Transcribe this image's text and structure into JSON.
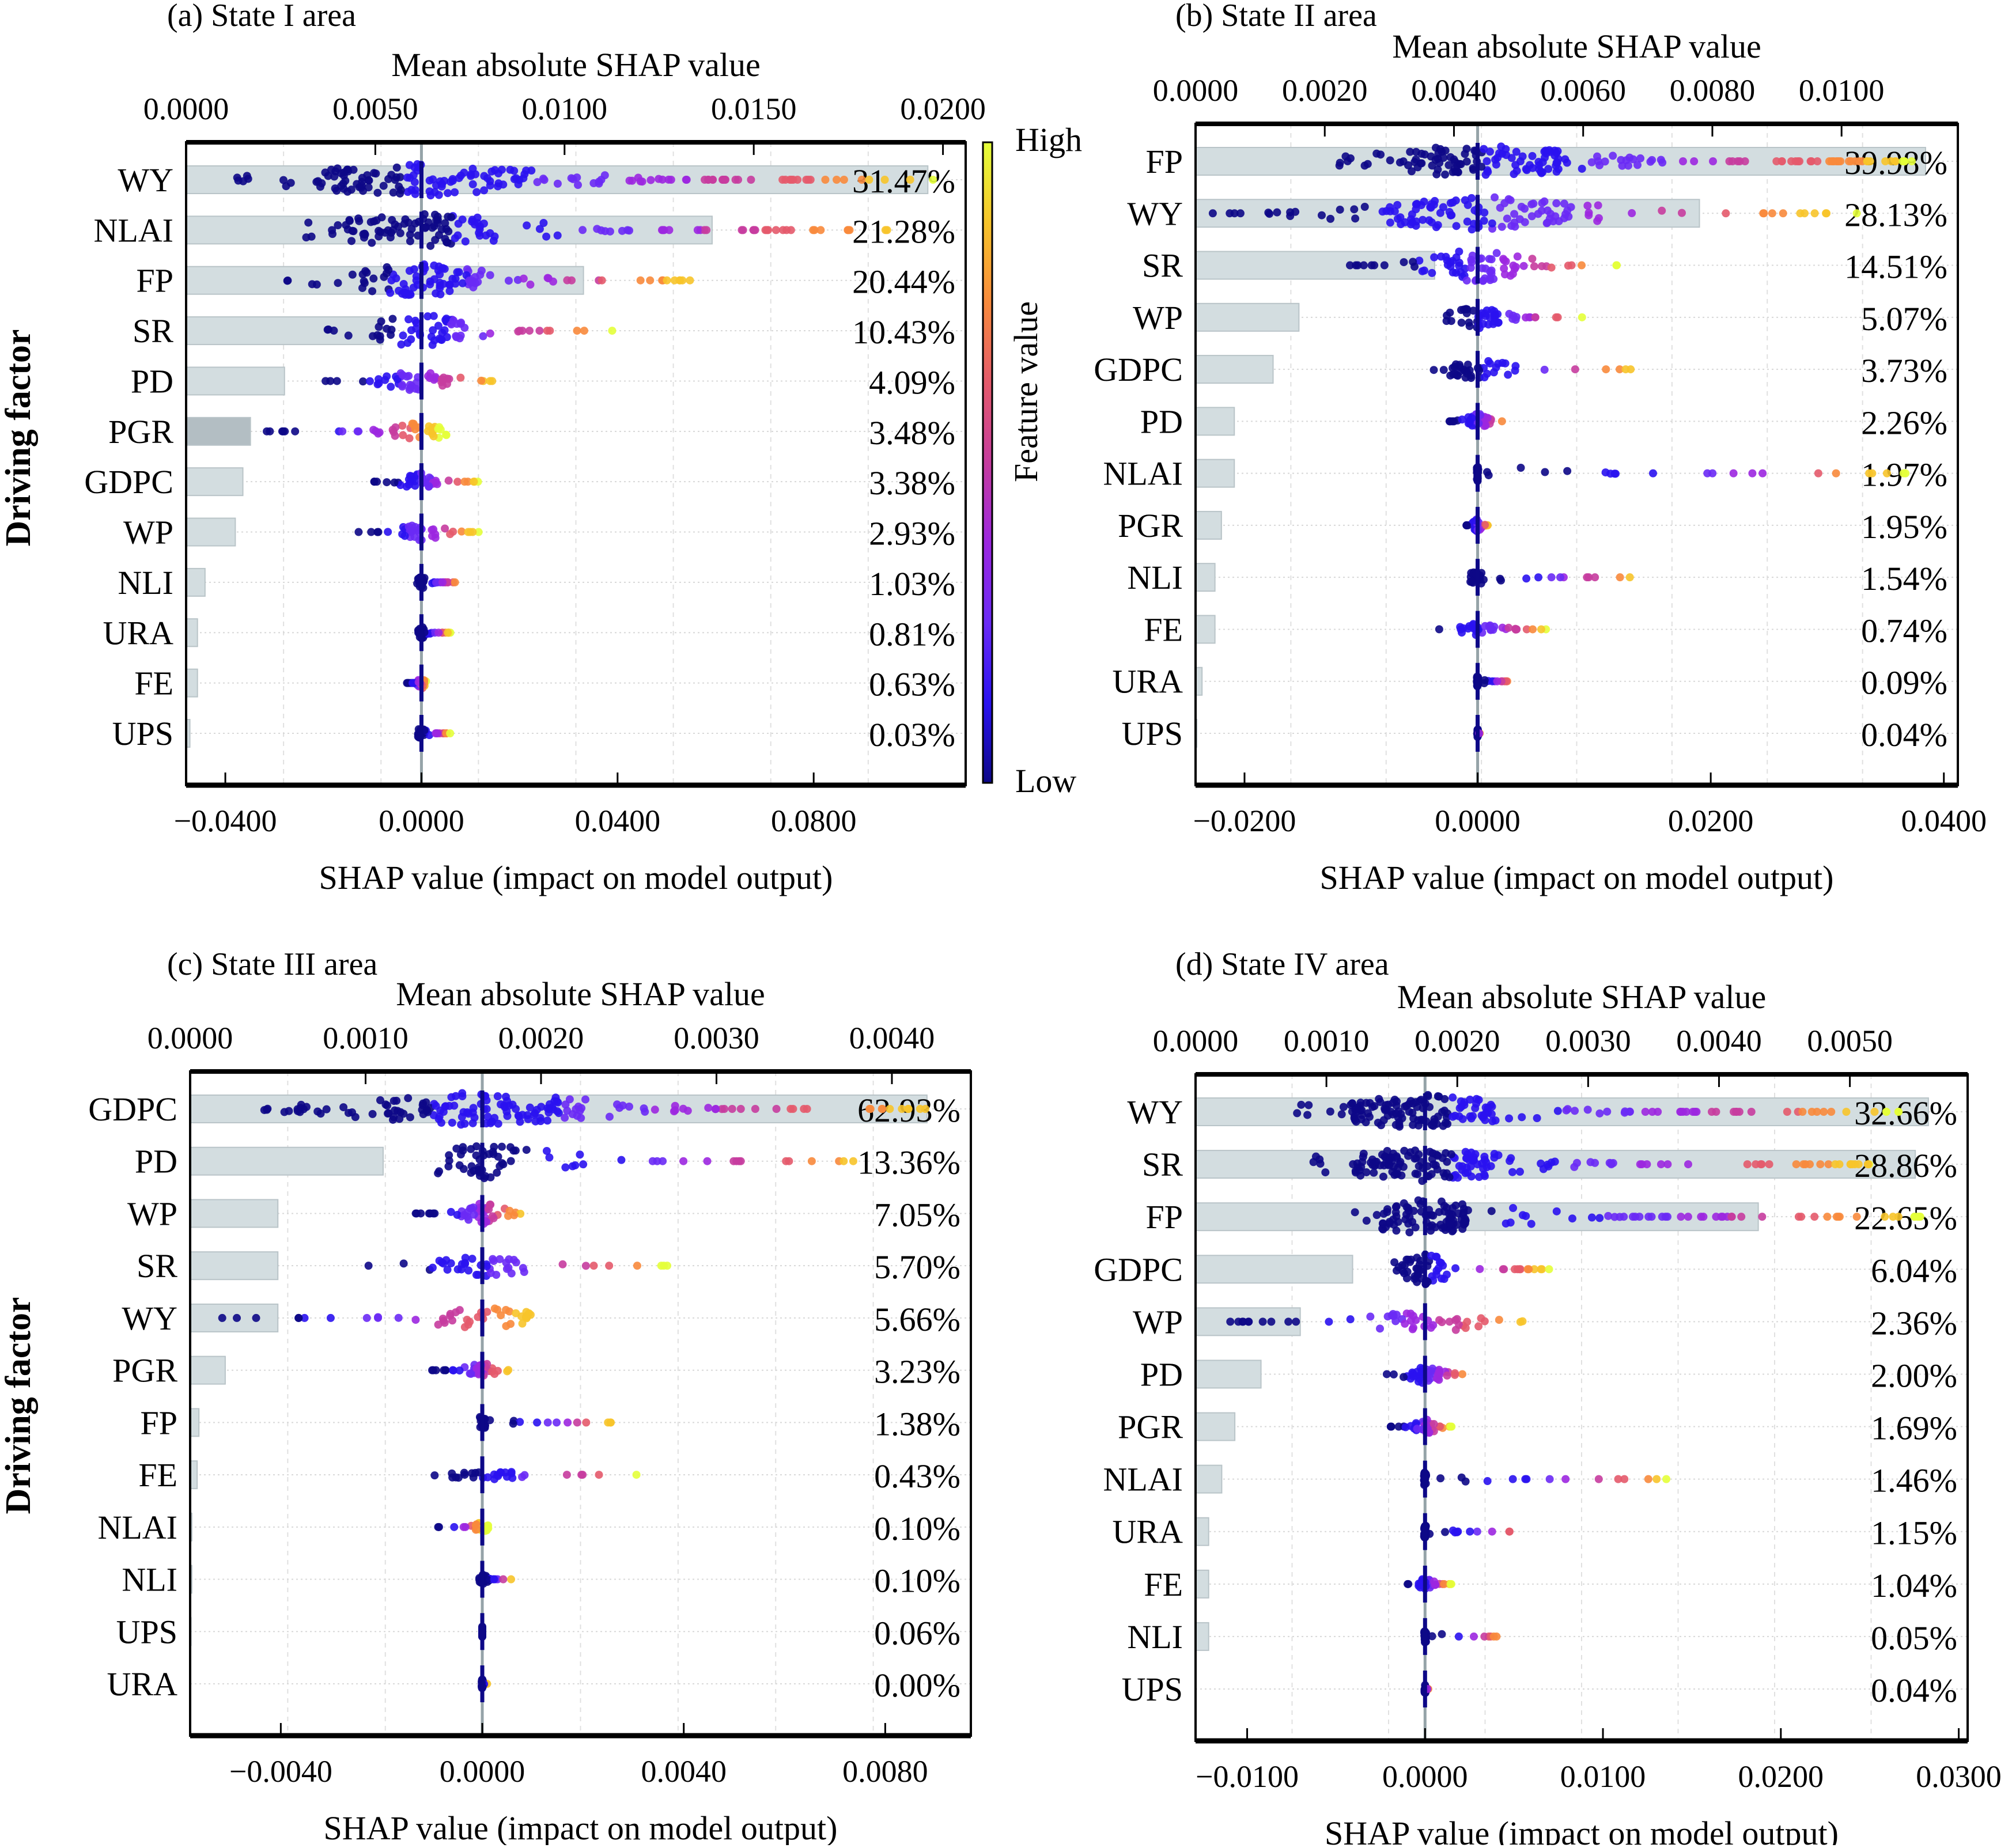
{
  "figure": {
    "ylabel": "Driving factor",
    "colorbar": {
      "label": "Feature value",
      "high": "High",
      "low": "Low",
      "colors": [
        "#0d0887",
        "#2a12f0",
        "#6a2af5",
        "#9c27e0",
        "#c63c9e",
        "#e45a6b",
        "#f88a3c",
        "#f7c42a",
        "#e4ff3a"
      ]
    }
  },
  "chart_data": [
    {
      "type": "bar",
      "panel": "a",
      "title": "(a) State I area",
      "top_xlabel": "Mean absolute SHAP value",
      "top_xticks": [
        "0.0000",
        "0.0050",
        "0.0100",
        "0.0150",
        "0.0200"
      ],
      "top_xlim": [
        0,
        0.0206
      ],
      "xlabel": "SHAP value (impact on model output)",
      "xticks": [
        "-0.0400",
        "0.0000",
        "0.0400",
        "0.0800"
      ],
      "xlim": [
        -0.048,
        0.111
      ],
      "ylabel": "Driving factor",
      "categories": [
        "WY",
        "NLAI",
        "FP",
        "SR",
        "PD",
        "PGR",
        "GDPC",
        "WP",
        "NLI",
        "URA",
        "FE",
        "UPS"
      ],
      "percent_labels": [
        "31.47%",
        "21.28%",
        "20.44%",
        "10.43%",
        "4.09%",
        "3.48%",
        "3.38%",
        "2.93%",
        "1.03%",
        "0.81%",
        "0.63%",
        "0.03%"
      ],
      "mean_abs_shap": [
        0.0196,
        0.0139,
        0.0105,
        0.0052,
        0.0026,
        0.0017,
        0.0015,
        0.0013,
        0.0005,
        0.0003,
        0.0003,
        0.0001
      ],
      "shap_range": [
        [
          -0.04,
          0.105
        ],
        [
          -0.025,
          0.1
        ],
        [
          -0.028,
          0.058
        ],
        [
          -0.02,
          0.04
        ],
        [
          -0.02,
          0.016
        ],
        [
          -0.032,
          0.004
        ],
        [
          -0.01,
          0.012
        ],
        [
          -0.015,
          0.012
        ],
        [
          -0.001,
          0.008
        ],
        [
          -0.001,
          0.006
        ],
        [
          -0.003,
          0.001
        ],
        [
          -0.001,
          0.006
        ]
      ]
    },
    {
      "type": "bar",
      "panel": "b",
      "title": "(b) State II area",
      "top_xlabel": "Mean absolute SHAP value",
      "top_xticks": [
        "0.0000",
        "0.0020",
        "0.0040",
        "0.0060",
        "0.0080",
        "0.0100"
      ],
      "top_xlim": [
        0,
        0.0118
      ],
      "xlabel": "SHAP value (impact on model output)",
      "xticks": [
        "-0.0200",
        "0.0000",
        "0.0200",
        "0.0400"
      ],
      "xlim": [
        -0.0242,
        0.0412
      ],
      "ylabel": "",
      "categories": [
        "FP",
        "WY",
        "SR",
        "WP",
        "GDPC",
        "PD",
        "NLAI",
        "PGR",
        "NLI",
        "FE",
        "URA",
        "UPS"
      ],
      "percent_labels": [
        "39.98%",
        "28.13%",
        "14.51%",
        "5.07%",
        "3.73%",
        "2.26%",
        "1.97%",
        "1.95%",
        "1.54%",
        "0.74%",
        "0.09%",
        "0.04%"
      ],
      "mean_abs_shap": [
        0.0113,
        0.0078,
        0.0037,
        0.0016,
        0.0012,
        0.0006,
        0.0006,
        0.0004,
        0.0003,
        0.0003,
        0.0001,
        2e-05
      ],
      "shap_range": [
        [
          -0.012,
          0.038
        ],
        [
          -0.023,
          0.033
        ],
        [
          -0.011,
          0.012
        ],
        [
          -0.003,
          0.009
        ],
        [
          -0.004,
          0.014
        ],
        [
          -0.003,
          0.003
        ],
        [
          0.0,
          0.037
        ],
        [
          -0.001,
          0.001
        ],
        [
          -0.001,
          0.014
        ],
        [
          -0.004,
          0.006
        ],
        [
          0.0,
          0.003
        ],
        [
          0.0,
          0.0002
        ]
      ]
    },
    {
      "type": "bar",
      "panel": "c",
      "title": "(c) State III area",
      "top_xlabel": "Mean absolute SHAP value",
      "top_xticks": [
        "0.0000",
        "0.0010",
        "0.0020",
        "0.0030",
        "0.0040"
      ],
      "top_xlim": [
        0,
        0.00445
      ],
      "xlabel": "SHAP value (impact on model output)",
      "xticks": [
        "-0.0040",
        "0.0000",
        "0.0040",
        "0.0080"
      ],
      "xlim": [
        -0.0058,
        0.0097
      ],
      "ylabel": "Driving factor",
      "categories": [
        "GDPC",
        "PD",
        "WP",
        "SR",
        "WY",
        "PGR",
        "FP",
        "FE",
        "NLAI",
        "NLI",
        "UPS",
        "URA"
      ],
      "percent_labels": [
        "62.93%",
        "13.36%",
        "7.05%",
        "5.70%",
        "5.66%",
        "3.23%",
        "1.38%",
        "0.43%",
        "0.10%",
        "0.10%",
        "0.06%",
        "0.00%"
      ],
      "mean_abs_shap": [
        0.0042,
        0.0011,
        0.0005,
        0.0005,
        0.0005,
        0.0002,
        5e-05,
        4e-05,
        1e-05,
        1e-05,
        5e-06,
        0.0
      ],
      "shap_range": [
        [
          -0.0044,
          0.0093
        ],
        [
          -0.0011,
          0.008
        ],
        [
          -0.0015,
          0.0009
        ],
        [
          -0.0026,
          0.0037
        ],
        [
          -0.0052,
          0.0012
        ],
        [
          -0.0011,
          0.0006
        ],
        [
          0.0,
          0.0027
        ],
        [
          -0.0011,
          0.0031
        ],
        [
          -0.0009,
          0.0
        ],
        [
          0.0,
          0.0006
        ],
        [
          0.0,
          0.0
        ],
        [
          0.0,
          0.0001
        ]
      ]
    },
    {
      "type": "bar",
      "panel": "d",
      "title": "(d) State IV area",
      "top_xlabel": "Mean absolute SHAP value",
      "top_xticks": [
        "0.0000",
        "0.0010",
        "0.0020",
        "0.0030",
        "0.0040",
        "0.0050"
      ],
      "top_xlim": [
        0,
        0.0059
      ],
      "xlabel": "SHAP value (impact on model output)",
      "xticks": [
        "-0.0100",
        "0.0000",
        "0.0100",
        "0.0200",
        "0.0300"
      ],
      "xlim": [
        -0.0129,
        0.0305
      ],
      "ylabel": "",
      "categories": [
        "WY",
        "SR",
        "FP",
        "GDPC",
        "WP",
        "PD",
        "PGR",
        "NLAI",
        "URA",
        "FE",
        "NLI",
        "UPS"
      ],
      "percent_labels": [
        "32.66%",
        "28.86%",
        "22.65%",
        "6.04%",
        "2.36%",
        "2.00%",
        "1.69%",
        "1.46%",
        "1.15%",
        "1.04%",
        "0.05%",
        "0.04%"
      ],
      "mean_abs_shap": [
        0.0056,
        0.0055,
        0.0043,
        0.0012,
        0.0008,
        0.0005,
        0.0003,
        0.0002,
        0.0001,
        0.0001,
        0.0001,
        0.0
      ],
      "shap_range": [
        [
          -0.0072,
          0.027
        ],
        [
          -0.0067,
          0.026
        ],
        [
          -0.004,
          0.028
        ],
        [
          -0.002,
          0.007
        ],
        [
          -0.011,
          0.0065
        ],
        [
          -0.0025,
          0.003
        ],
        [
          -0.002,
          0.0015
        ],
        [
          0.0,
          0.014
        ],
        [
          0.0,
          0.006
        ],
        [
          -0.001,
          0.0015
        ],
        [
          0.0,
          0.0045
        ],
        [
          0.0,
          0.0002
        ]
      ]
    }
  ]
}
